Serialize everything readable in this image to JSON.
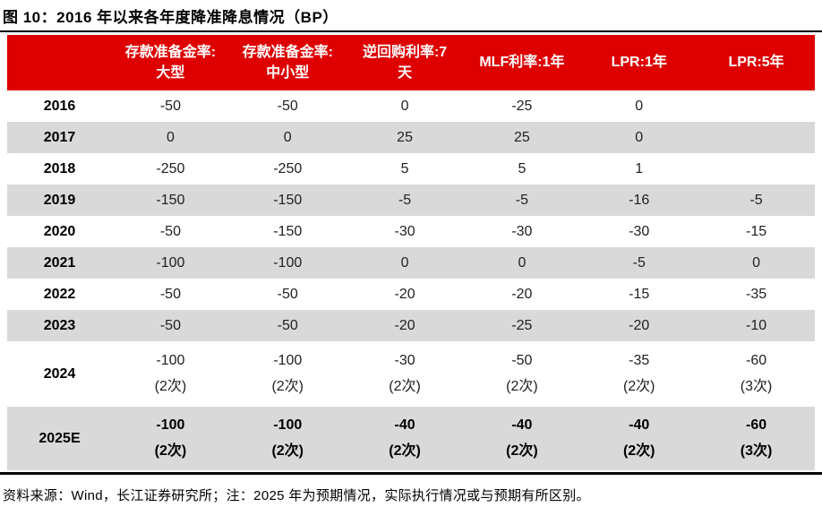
{
  "title": "图 10：2016 年以来各年度降准降息情况（BP）",
  "footer": "资料来源：Wind，长江证券研究所；注：2025 年为预期情况，实际执行情况或与预期有所区别。",
  "colors": {
    "header_red": "#de0000",
    "stripe_gray": "#d9d9d9",
    "header_text": "#ffffff",
    "body_text": "#1f1f1f"
  },
  "table": {
    "columns": [
      {
        "line1": "",
        "line2": ""
      },
      {
        "line1": "存款准备金率:",
        "line2": "大型"
      },
      {
        "line1": "存款准备金率:",
        "line2": "中小型"
      },
      {
        "line1": "逆回购利率:7",
        "line2": "天"
      },
      {
        "line1": "MLF利率:1年",
        "line2": ""
      },
      {
        "line1": "LPR:1年",
        "line2": ""
      },
      {
        "line1": "LPR:5年",
        "line2": ""
      }
    ],
    "rows": [
      {
        "year": "2016",
        "values": [
          "-50",
          "-50",
          "0",
          "-25",
          "0",
          ""
        ]
      },
      {
        "year": "2017",
        "values": [
          "0",
          "0",
          "25",
          "25",
          "0",
          ""
        ]
      },
      {
        "year": "2018",
        "values": [
          "-250",
          "-250",
          "5",
          "5",
          "1",
          ""
        ]
      },
      {
        "year": "2019",
        "values": [
          "-150",
          "-150",
          "-5",
          "-5",
          "-16",
          "-5"
        ]
      },
      {
        "year": "2020",
        "values": [
          "-50",
          "-150",
          "-30",
          "-30",
          "-30",
          "-15"
        ]
      },
      {
        "year": "2021",
        "values": [
          "-100",
          "-100",
          "0",
          "0",
          "-5",
          "0"
        ]
      },
      {
        "year": "2022",
        "values": [
          "-50",
          "-50",
          "-20",
          "-20",
          "-15",
          "-35"
        ]
      },
      {
        "year": "2023",
        "values": [
          "-50",
          "-50",
          "-20",
          "-25",
          "-20",
          "-10"
        ]
      },
      {
        "year": "2024",
        "values": [
          "-100",
          "-100",
          "-30",
          "-50",
          "-35",
          "-60"
        ],
        "subs": [
          "(2次)",
          "(2次)",
          "(2次)",
          "(2次)",
          "(2次)",
          "(3次)"
        ]
      },
      {
        "year": "2025E",
        "values": [
          "-100",
          "-100",
          "-40",
          "-40",
          "-40",
          "-60"
        ],
        "subs": [
          "(2次)",
          "(2次)",
          "(2次)",
          "(2次)",
          "(2次)",
          "(3次)"
        ],
        "bold": true
      }
    ]
  }
}
